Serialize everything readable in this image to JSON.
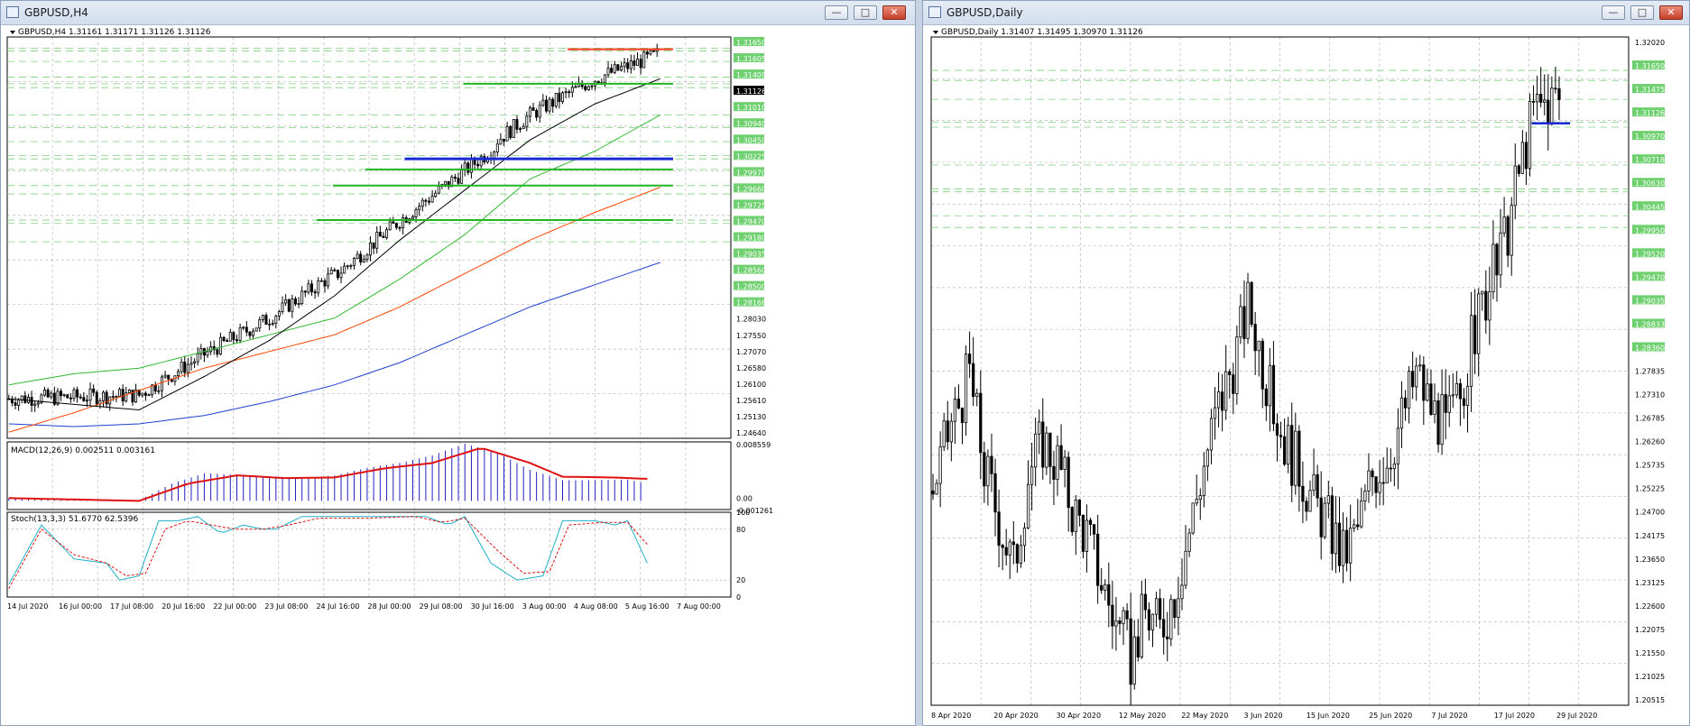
{
  "windows": {
    "h4": {
      "title": "GBPUSD,H4",
      "min": "—",
      "max": "□",
      "close": "✕",
      "icon": "chart-window-icon"
    },
    "daily": {
      "title": "GBPUSD,Daily",
      "min": "—",
      "max": "□",
      "close": "✕",
      "icon": "chart-window-icon"
    }
  },
  "colors": {
    "up": "#ffffff",
    "down": "#000000",
    "grid": "#b8b8b8",
    "sma_fast": "#000000",
    "sma_mid": "#2eb82e",
    "sma_slow": "#ff4500",
    "sma_long": "#1f3fd0",
    "level_green": "#22b522",
    "level_blue": "#1a2bd6",
    "level_red": "#ff3b1a",
    "macd_hist": "#2020c0",
    "macd_signal": "#e01010",
    "stoch_main": "#20b0c8",
    "stoch_signal": "#e01010"
  },
  "h4": {
    "header": "GBPUSD,H4  1.31161 1.31171 1.31126 1.31126",
    "macd_label": "MACD(12,26,9) 0.002511 0.003161",
    "stoch_label": "Stoch(13,3,3) 51.6770 62.5396",
    "price_ticks": [
      "1.31650",
      "1.31605",
      "1.31409",
      "1.31126",
      "1.31010",
      "1.30940",
      "1.30450",
      "1.30225",
      "1.29970",
      "1.29660",
      "1.29725",
      "1.29470",
      "1.29180",
      "1.29035",
      "1.28560",
      "1.28500",
      "1.28168",
      "1.28030",
      "1.27550",
      "1.27070",
      "1.26580",
      "1.26100",
      "1.25610",
      "1.25130",
      "1.24640"
    ],
    "macd_ticks": [
      "0.008559",
      "0.00",
      "-0.001261"
    ],
    "stoch_ticks": [
      "100",
      "80",
      "20",
      "0"
    ],
    "time_labels": [
      "14 Jul 2020",
      "16 Jul 00:00",
      "17 Jul 08:00",
      "20 Jul 16:00",
      "22 Jul 00:00",
      "23 Jul 08:00",
      "24 Jul 16:00",
      "28 Jul 00:00",
      "29 Jul 08:00",
      "30 Jul 16:00",
      "3 Aug 00:00",
      "4 Aug 08:00",
      "5 Aug 16:00",
      "7 Aug 00:00"
    ]
  },
  "daily": {
    "header": "GBPUSD,Daily  1.31407 1.31495 1.30970 1.31126",
    "price_ticks": [
      "1.32020",
      "1.31650",
      "1.31475",
      "1.31126",
      "1.30970",
      "1.30718",
      "1.30630",
      "1.30445",
      "1.29950",
      "1.29520",
      "1.29470",
      "1.29035",
      "1.28833",
      "1.28360",
      "1.27835",
      "1.27310",
      "1.26785",
      "1.26260",
      "1.25735",
      "1.25225",
      "1.24700",
      "1.24175",
      "1.23650",
      "1.23125",
      "1.22600",
      "1.22075",
      "1.21550",
      "1.21025",
      "1.20515"
    ],
    "time_labels": [
      "8 Apr 2020",
      "20 Apr 2020",
      "30 Apr 2020",
      "12 May 2020",
      "22 May 2020",
      "3 Jun 2020",
      "15 Jun 2020",
      "25 Jun 2020",
      "7 Jul 2020",
      "17 Jul 2020",
      "29 Jul 2020"
    ]
  },
  "chart_data": [
    {
      "type": "candlestick",
      "title": "GBPUSD,H4",
      "ylim": [
        1.2464,
        1.3185
      ],
      "indicators": [
        "SMA fast (black)",
        "SMA mid (green)",
        "SMA slow (orange)",
        "SMA long (blue)",
        "MACD(12,26,9)",
        "Stoch(13,3,3)"
      ],
      "moving_averages": {
        "fast": [
          [
            0,
            1.2535
          ],
          [
            20,
            1.2525
          ],
          [
            40,
            1.2515
          ],
          [
            60,
            1.2575
          ],
          [
            80,
            1.264
          ],
          [
            100,
            1.272
          ],
          [
            120,
            1.282
          ],
          [
            140,
            1.291
          ],
          [
            160,
            1.3
          ],
          [
            180,
            1.3065
          ],
          [
            200,
            1.311
          ]
        ],
        "mid": [
          [
            0,
            1.256
          ],
          [
            20,
            1.258
          ],
          [
            40,
            1.259
          ],
          [
            60,
            1.262
          ],
          [
            80,
            1.265
          ],
          [
            100,
            1.268
          ],
          [
            120,
            1.275
          ],
          [
            140,
            1.283
          ],
          [
            160,
            1.293
          ],
          [
            180,
            1.298
          ],
          [
            200,
            1.3045
          ]
        ],
        "slow": [
          [
            0,
            1.2475
          ],
          [
            20,
            1.251
          ],
          [
            40,
            1.255
          ],
          [
            60,
            1.259
          ],
          [
            80,
            1.262
          ],
          [
            100,
            1.265
          ],
          [
            120,
            1.27
          ],
          [
            140,
            1.276
          ],
          [
            160,
            1.282
          ],
          [
            180,
            1.287
          ],
          [
            200,
            1.2915
          ]
        ],
        "long": [
          [
            0,
            1.249
          ],
          [
            20,
            1.2485
          ],
          [
            40,
            1.249
          ],
          [
            60,
            1.2505
          ],
          [
            80,
            1.253
          ],
          [
            100,
            1.256
          ],
          [
            120,
            1.26
          ],
          [
            140,
            1.265
          ],
          [
            160,
            1.27
          ],
          [
            180,
            1.274
          ],
          [
            200,
            1.278
          ]
        ]
      },
      "levels": [
        {
          "price": 1.3163,
          "color": "red",
          "from": 172
        },
        {
          "price": 1.3101,
          "color": "green",
          "from": 140
        },
        {
          "price": 1.2966,
          "color": "blue",
          "from": 122
        },
        {
          "price": 1.2947,
          "color": "green",
          "from": 110
        },
        {
          "price": 1.2918,
          "color": "green",
          "from": 100
        },
        {
          "price": 1.2856,
          "color": "green",
          "from": 95
        }
      ],
      "dashed_levels": [
        1.3165,
        1.316,
        1.3141,
        1.3113,
        1.3101,
        1.3094,
        1.3045,
        1.3022,
        1.2997,
        1.2966,
        1.2972,
        1.2947,
        1.2918,
        1.2903,
        1.2856,
        1.285,
        1.2817
      ],
      "macd": {
        "ylim": [
          -0.001261,
          0.008559
        ],
        "hist": [
          [
            0,
            0.0004
          ],
          [
            20,
            0.0003
          ],
          [
            40,
            0.0001
          ],
          [
            50,
            0.0025
          ],
          [
            60,
            0.004
          ],
          [
            70,
            0.0038
          ],
          [
            80,
            0.0036
          ],
          [
            90,
            0.0033
          ],
          [
            100,
            0.0037
          ],
          [
            110,
            0.0048
          ],
          [
            120,
            0.0055
          ],
          [
            130,
            0.0066
          ],
          [
            140,
            0.0083
          ],
          [
            150,
            0.007
          ],
          [
            160,
            0.0045
          ],
          [
            170,
            0.003
          ],
          [
            180,
            0.003
          ],
          [
            190,
            0.0031
          ],
          [
            196,
            0.0025
          ]
        ],
        "signal": [
          [
            0,
            0.0004
          ],
          [
            20,
            0.0002
          ],
          [
            40,
            0.0
          ],
          [
            55,
            0.0025
          ],
          [
            70,
            0.0037
          ],
          [
            85,
            0.0033
          ],
          [
            100,
            0.0034
          ],
          [
            115,
            0.0047
          ],
          [
            130,
            0.0055
          ],
          [
            145,
            0.0077
          ],
          [
            160,
            0.0055
          ],
          [
            170,
            0.0035
          ],
          [
            185,
            0.0034
          ],
          [
            196,
            0.0032
          ]
        ]
      },
      "stoch": {
        "ylim": [
          0,
          100
        ],
        "main": [
          [
            0,
            15
          ],
          [
            10,
            85
          ],
          [
            20,
            45
          ],
          [
            30,
            40
          ],
          [
            34,
            20
          ],
          [
            40,
            25
          ],
          [
            46,
            90
          ],
          [
            52,
            90
          ],
          [
            58,
            95
          ],
          [
            65,
            75
          ],
          [
            72,
            85
          ],
          [
            78,
            80
          ],
          [
            82,
            80
          ],
          [
            90,
            95
          ],
          [
            100,
            95
          ],
          [
            110,
            95
          ],
          [
            122,
            95
          ],
          [
            128,
            95
          ],
          [
            135,
            85
          ],
          [
            140,
            95
          ],
          [
            148,
            40
          ],
          [
            156,
            20
          ],
          [
            164,
            25
          ],
          [
            170,
            90
          ],
          [
            180,
            90
          ],
          [
            186,
            85
          ],
          [
            190,
            90
          ],
          [
            196,
            40
          ]
        ],
        "signal": [
          [
            0,
            10
          ],
          [
            10,
            80
          ],
          [
            20,
            50
          ],
          [
            30,
            40
          ],
          [
            36,
            25
          ],
          [
            42,
            28
          ],
          [
            48,
            80
          ],
          [
            55,
            90
          ],
          [
            62,
            85
          ],
          [
            70,
            80
          ],
          [
            78,
            80
          ],
          [
            86,
            85
          ],
          [
            95,
            93
          ],
          [
            110,
            93
          ],
          [
            125,
            95
          ],
          [
            133,
            88
          ],
          [
            140,
            93
          ],
          [
            150,
            55
          ],
          [
            158,
            28
          ],
          [
            166,
            30
          ],
          [
            172,
            85
          ],
          [
            182,
            88
          ],
          [
            190,
            88
          ],
          [
            196,
            62
          ]
        ]
      }
    },
    {
      "type": "candlestick",
      "title": "GBPUSD,Daily",
      "ylim": [
        1.2025,
        1.3225
      ],
      "closes": [
        [
          0,
          1.241
        ],
        [
          5,
          1.253
        ],
        [
          10,
          1.262
        ],
        [
          14,
          1.245
        ],
        [
          18,
          1.236
        ],
        [
          22,
          1.227
        ],
        [
          26,
          1.244
        ],
        [
          30,
          1.25
        ],
        [
          34,
          1.246
        ],
        [
          38,
          1.238
        ],
        [
          42,
          1.233
        ],
        [
          46,
          1.225
        ],
        [
          50,
          1.217
        ],
        [
          54,
          1.211
        ],
        [
          58,
          1.219
        ],
        [
          62,
          1.216
        ],
        [
          66,
          1.223
        ],
        [
          70,
          1.234
        ],
        [
          74,
          1.246
        ],
        [
          78,
          1.256
        ],
        [
          82,
          1.264
        ],
        [
          86,
          1.274
        ],
        [
          88,
          1.27
        ],
        [
          92,
          1.258
        ],
        [
          96,
          1.25
        ],
        [
          100,
          1.245
        ],
        [
          104,
          1.239
        ],
        [
          108,
          1.235
        ],
        [
          112,
          1.229
        ],
        [
          116,
          1.234
        ],
        [
          120,
          1.244
        ],
        [
          124,
          1.247
        ],
        [
          128,
          1.254
        ],
        [
          132,
          1.262
        ],
        [
          136,
          1.256
        ],
        [
          140,
          1.252
        ],
        [
          144,
          1.258
        ],
        [
          148,
          1.27
        ],
        [
          152,
          1.278
        ],
        [
          156,
          1.285
        ],
        [
          160,
          1.298
        ],
        [
          164,
          1.309
        ],
        [
          168,
          1.311
        ],
        [
          171,
          1.3113
        ]
      ],
      "levels": [
        {
          "price": 1.307,
          "color": "blue",
          "from": 164
        }
      ],
      "dashed_levels": [
        1.3165,
        1.3147,
        1.3113,
        1.3072,
        1.3063,
        1.2995,
        1.2952,
        1.2947,
        1.2904,
        1.2883
      ]
    }
  ]
}
